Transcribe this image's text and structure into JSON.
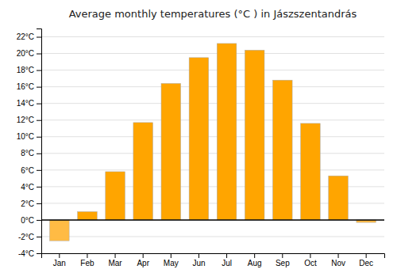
{
  "chart_data": {
    "type": "bar",
    "title": "Average monthly temperatures (°C ) in Jászszentandrás",
    "categories": [
      "Jan",
      "Feb",
      "Mar",
      "Apr",
      "May",
      "Jun",
      "Jul",
      "Aug",
      "Sep",
      "Oct",
      "Nov",
      "Dec"
    ],
    "values": [
      -2.5,
      1.0,
      5.8,
      11.7,
      16.4,
      19.5,
      21.2,
      20.4,
      16.8,
      11.6,
      5.3,
      -0.3
    ],
    "colors": [
      "#FFBB44",
      "#FFA500",
      "#FFA500",
      "#FFA500",
      "#FFA500",
      "#FFA500",
      "#FFA500",
      "#FFA500",
      "#FFA500",
      "#FFA500",
      "#FFA500",
      "#FFBB44"
    ],
    "ylim": [
      -4,
      23
    ],
    "yticks": [
      {
        "value": -4,
        "label": "-4°C"
      },
      {
        "value": -2,
        "label": "-2°C"
      },
      {
        "value": 0,
        "label": "0°C"
      },
      {
        "value": 2,
        "label": "2°C"
      },
      {
        "value": 4,
        "label": "4°C"
      },
      {
        "value": 6,
        "label": "6°C"
      },
      {
        "value": 8,
        "label": "8°C"
      },
      {
        "value": 10,
        "label": "10°C"
      },
      {
        "value": 12,
        "label": "12°C"
      },
      {
        "value": 14,
        "label": "14°C"
      },
      {
        "value": 16,
        "label": "16°C"
      },
      {
        "value": 18,
        "label": "18°C"
      },
      {
        "value": 20,
        "label": "20°C"
      },
      {
        "value": 22,
        "label": "22°C"
      }
    ],
    "grid": true
  }
}
